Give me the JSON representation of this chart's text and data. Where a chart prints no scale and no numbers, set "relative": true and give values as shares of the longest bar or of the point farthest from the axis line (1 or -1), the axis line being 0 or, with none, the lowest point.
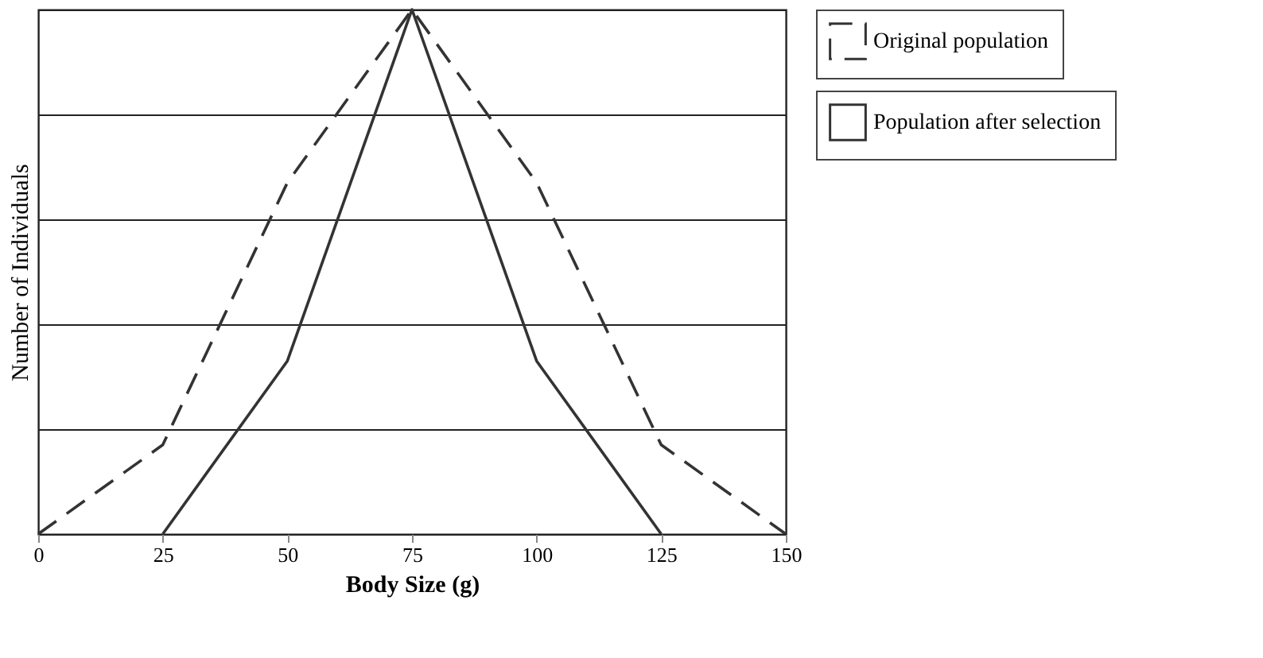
{
  "chart_data": {
    "type": "line",
    "relative": true,
    "xlabel": "Body Size (g)",
    "ylabel": "Number of Individuals",
    "x": [
      0,
      25,
      50,
      75,
      100,
      125,
      150
    ],
    "xlim": [
      0,
      150
    ],
    "xticks": [
      0,
      25,
      50,
      75,
      100,
      125,
      150
    ],
    "series": [
      {
        "name": "Original population",
        "color": "#333333",
        "line_style": "dashed",
        "values": [
          0,
          0.17,
          0.67,
          1,
          0.67,
          0.17,
          0
        ]
      },
      {
        "name": "Population after selection",
        "color": "#333333",
        "line_style": "solid",
        "x": [
          25,
          50,
          75,
          100,
          125
        ],
        "values": [
          0,
          0.33,
          1,
          0.33,
          0
        ]
      }
    ],
    "grid": "y",
    "legend": "right",
    "marker": "none"
  }
}
